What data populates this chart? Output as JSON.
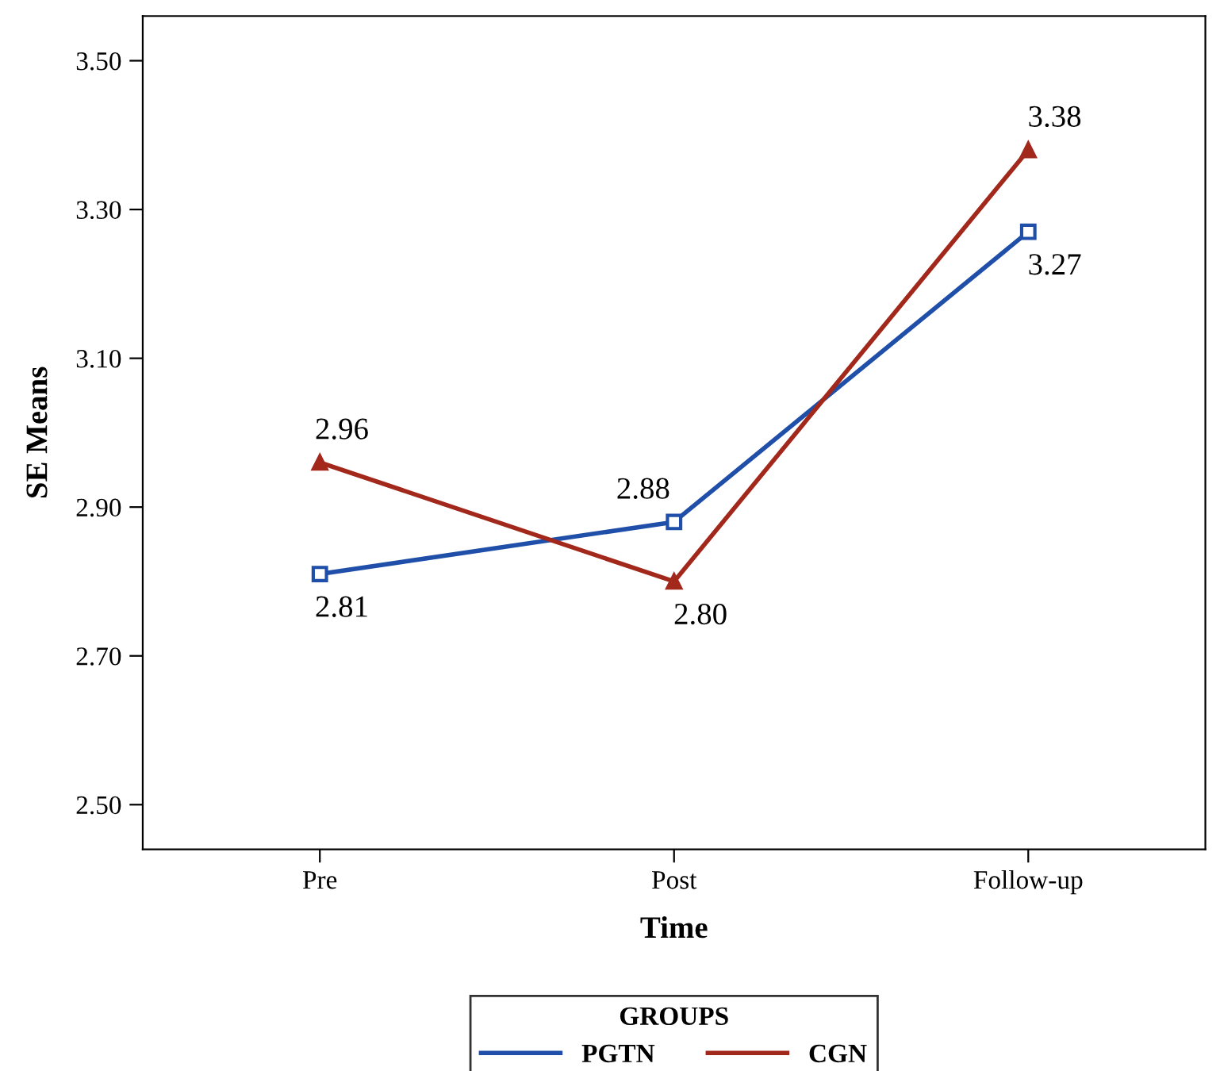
{
  "chart_data": {
    "type": "line",
    "xlabel": "Time",
    "ylabel": "SE Means",
    "legend_title": "GROUPS",
    "categories": [
      "Pre",
      "Post",
      "Follow-up"
    ],
    "series": [
      {
        "name": "PGTN",
        "color": "#1f4fa8",
        "values": [
          2.81,
          2.88,
          3.27
        ],
        "value_labels": [
          "2.81",
          "2.88",
          "3.27"
        ],
        "marker": "square"
      },
      {
        "name": "CGN",
        "color": "#a3281c",
        "values": [
          2.96,
          2.8,
          3.38
        ],
        "value_labels": [
          "2.96",
          "2.80",
          "3.38"
        ],
        "marker": "triangle"
      }
    ],
    "ylim": [
      2.44,
      3.56
    ],
    "yticks": [
      {
        "value": 2.5,
        "label": "2.50"
      },
      {
        "value": 2.7,
        "label": "2.70"
      },
      {
        "value": 2.9,
        "label": "2.90"
      },
      {
        "value": 3.1,
        "label": "3.10"
      },
      {
        "value": 3.3,
        "label": "3.30"
      },
      {
        "value": 3.5,
        "label": "3.50"
      }
    ],
    "data_labels": true,
    "grid": false,
    "legend": "bottom",
    "line_style": "solid"
  }
}
